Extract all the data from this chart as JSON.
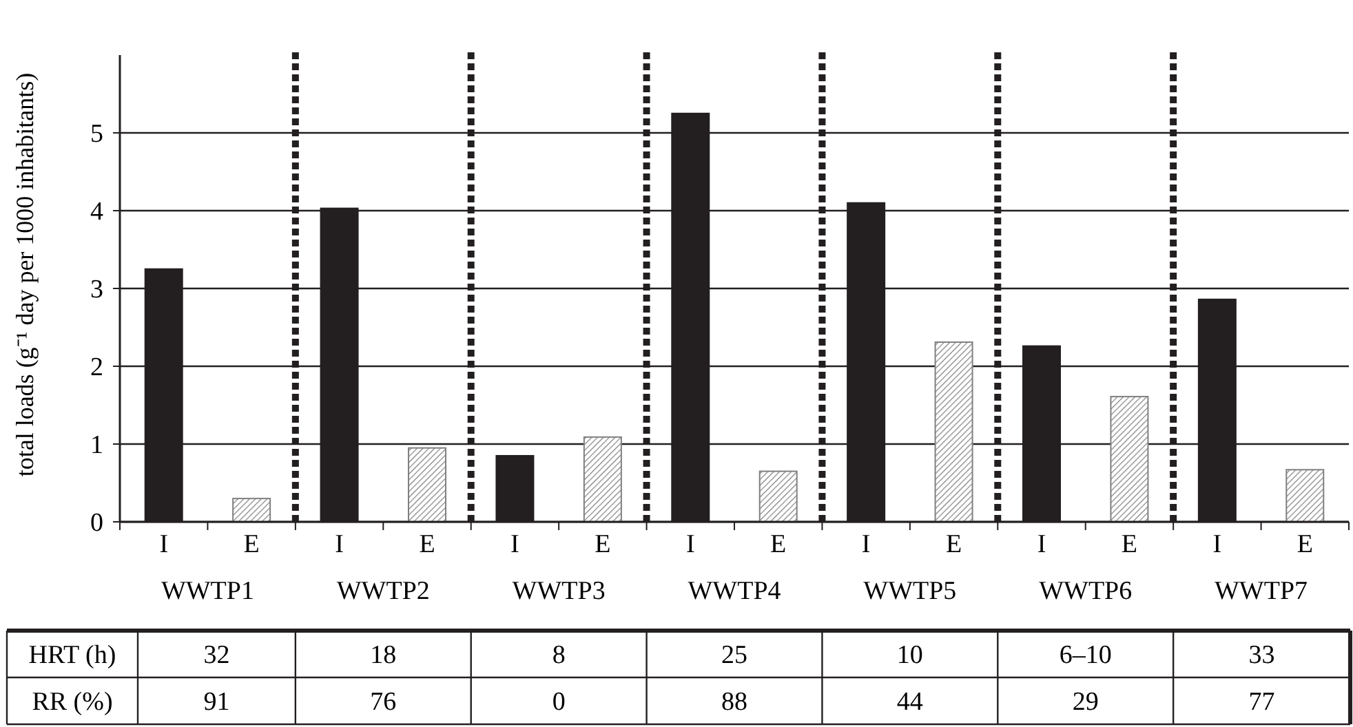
{
  "chart_data": {
    "type": "bar",
    "ylabel": "total loads (g⁻¹ day  per 1000 inhabitants)",
    "categories": [
      "WWTP1",
      "WWTP2",
      "WWTP3",
      "WWTP4",
      "WWTP5",
      "WWTP6",
      "WWTP7"
    ],
    "series": [
      {
        "name": "I",
        "color": "#231f20",
        "values": [
          3.25,
          4.03,
          0.85,
          5.25,
          4.1,
          2.26,
          2.86
        ]
      },
      {
        "name": "E",
        "color": "#808080",
        "values": [
          0.3,
          0.95,
          1.09,
          0.65,
          2.31,
          1.61,
          0.67
        ]
      }
    ],
    "ylim": [
      0,
      6
    ],
    "yticks": [
      0,
      1,
      2,
      3,
      4,
      5
    ],
    "grid": "y",
    "legend": false,
    "annotations": [
      "HRT (h)",
      "32",
      "18",
      "8",
      "25",
      "10",
      "6–10",
      "33",
      "RR (%)",
      "91",
      "76",
      "0",
      "88",
      "44",
      "29",
      "77"
    ]
  }
}
